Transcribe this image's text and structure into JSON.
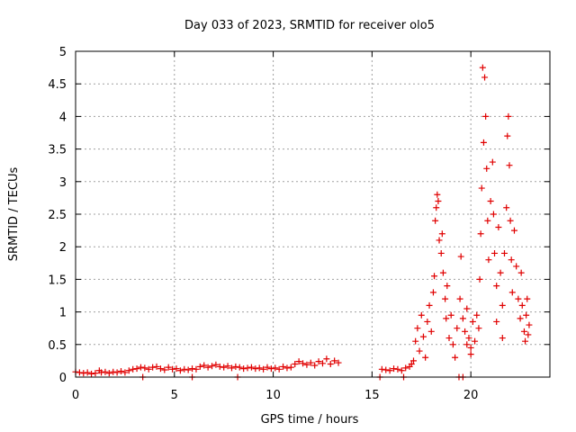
{
  "chart_data": {
    "type": "scatter",
    "title": "Day 033 of 2023, SRMTID for receiver olo5",
    "xlabel": "GPS time / hours",
    "ylabel": "SRMTID / TECUs",
    "xlim": [
      0,
      24
    ],
    "ylim": [
      0,
      5
    ],
    "xticks": [
      0,
      5,
      10,
      15,
      20
    ],
    "xtick_labels": [
      "0",
      "5",
      "10",
      "15",
      "20"
    ],
    "yticks": [
      0,
      0.5,
      1,
      1.5,
      2,
      2.5,
      3,
      3.5,
      4,
      4.5,
      5
    ],
    "ytick_labels": [
      "0",
      "0.5",
      "1",
      "1.5",
      "2",
      "2.5",
      "3",
      "3.5",
      "4",
      "4.5",
      "5"
    ],
    "grid": true,
    "marker": "+",
    "color": "#e00000",
    "series": [
      {
        "name": "olo5",
        "points": [
          [
            0.0,
            0.08
          ],
          [
            0.2,
            0.07
          ],
          [
            0.4,
            0.06
          ],
          [
            0.6,
            0.07
          ],
          [
            0.8,
            0.05
          ],
          [
            1.0,
            0.06
          ],
          [
            1.2,
            0.1
          ],
          [
            1.3,
            0.07
          ],
          [
            1.5,
            0.08
          ],
          [
            1.7,
            0.06
          ],
          [
            1.9,
            0.08
          ],
          [
            2.1,
            0.07
          ],
          [
            2.3,
            0.09
          ],
          [
            2.5,
            0.07
          ],
          [
            2.7,
            0.1
          ],
          [
            2.9,
            0.12
          ],
          [
            3.1,
            0.13
          ],
          [
            3.3,
            0.15
          ],
          [
            3.5,
            0.14
          ],
          [
            3.7,
            0.12
          ],
          [
            3.9,
            0.15
          ],
          [
            4.1,
            0.16
          ],
          [
            4.3,
            0.13
          ],
          [
            4.5,
            0.11
          ],
          [
            4.7,
            0.15
          ],
          [
            4.9,
            0.12
          ],
          [
            5.1,
            0.13
          ],
          [
            5.3,
            0.1
          ],
          [
            5.5,
            0.12
          ],
          [
            5.7,
            0.11
          ],
          [
            5.9,
            0.13
          ],
          [
            6.1,
            0.12
          ],
          [
            6.3,
            0.16
          ],
          [
            6.5,
            0.18
          ],
          [
            6.7,
            0.15
          ],
          [
            6.9,
            0.17
          ],
          [
            7.1,
            0.19
          ],
          [
            7.3,
            0.16
          ],
          [
            7.5,
            0.15
          ],
          [
            7.7,
            0.17
          ],
          [
            7.9,
            0.14
          ],
          [
            8.1,
            0.16
          ],
          [
            8.3,
            0.15
          ],
          [
            8.5,
            0.13
          ],
          [
            8.7,
            0.14
          ],
          [
            8.9,
            0.15
          ],
          [
            9.1,
            0.13
          ],
          [
            9.3,
            0.14
          ],
          [
            9.5,
            0.12
          ],
          [
            9.7,
            0.15
          ],
          [
            9.9,
            0.13
          ],
          [
            10.1,
            0.14
          ],
          [
            10.3,
            0.12
          ],
          [
            10.5,
            0.16
          ],
          [
            10.7,
            0.14
          ],
          [
            10.9,
            0.15
          ],
          [
            11.1,
            0.2
          ],
          [
            11.3,
            0.24
          ],
          [
            11.5,
            0.21
          ],
          [
            11.7,
            0.19
          ],
          [
            11.9,
            0.22
          ],
          [
            12.1,
            0.18
          ],
          [
            12.3,
            0.24
          ],
          [
            12.5,
            0.21
          ],
          [
            12.7,
            0.28
          ],
          [
            12.9,
            0.2
          ],
          [
            13.1,
            0.25
          ],
          [
            13.3,
            0.22
          ],
          [
            3.4,
            0.0
          ],
          [
            5.9,
            0.0
          ],
          [
            8.2,
            0.0
          ],
          [
            15.4,
            0.0
          ],
          [
            16.6,
            0.0
          ],
          [
            19.4,
            0.0
          ],
          [
            19.6,
            0.0
          ],
          [
            15.5,
            0.12
          ],
          [
            15.7,
            0.11
          ],
          [
            15.9,
            0.1
          ],
          [
            16.1,
            0.13
          ],
          [
            16.3,
            0.12
          ],
          [
            16.5,
            0.1
          ],
          [
            16.7,
            0.14
          ],
          [
            16.9,
            0.16
          ],
          [
            17.0,
            0.2
          ],
          [
            17.1,
            0.25
          ],
          [
            17.2,
            0.55
          ],
          [
            17.3,
            0.75
          ],
          [
            17.4,
            0.4
          ],
          [
            17.5,
            0.95
          ],
          [
            17.6,
            0.62
          ],
          [
            17.7,
            0.3
          ],
          [
            17.8,
            0.85
          ],
          [
            17.9,
            1.1
          ],
          [
            18.0,
            0.7
          ],
          [
            18.1,
            1.3
          ],
          [
            18.15,
            1.55
          ],
          [
            18.2,
            2.4
          ],
          [
            18.25,
            2.6
          ],
          [
            18.3,
            2.8
          ],
          [
            18.35,
            2.7
          ],
          [
            18.4,
            2.1
          ],
          [
            18.5,
            1.9
          ],
          [
            18.55,
            2.2
          ],
          [
            18.6,
            1.6
          ],
          [
            18.7,
            1.2
          ],
          [
            18.75,
            0.9
          ],
          [
            18.8,
            1.4
          ],
          [
            18.9,
            0.6
          ],
          [
            19.0,
            0.95
          ],
          [
            19.1,
            0.5
          ],
          [
            19.2,
            0.3
          ],
          [
            19.3,
            0.75
          ],
          [
            19.45,
            1.2
          ],
          [
            19.5,
            1.85
          ],
          [
            19.6,
            0.9
          ],
          [
            19.7,
            0.7
          ],
          [
            19.8,
            1.05
          ],
          [
            19.9,
            0.6
          ],
          [
            20.0,
            0.45
          ],
          [
            20.1,
            0.85
          ],
          [
            20.2,
            0.55
          ],
          [
            20.3,
            0.95
          ],
          [
            20.4,
            0.75
          ],
          [
            20.45,
            1.5
          ],
          [
            20.5,
            2.2
          ],
          [
            20.55,
            2.9
          ],
          [
            20.6,
            4.75
          ],
          [
            20.65,
            3.6
          ],
          [
            20.7,
            4.6
          ],
          [
            20.75,
            4.0
          ],
          [
            20.8,
            3.2
          ],
          [
            20.85,
            2.4
          ],
          [
            20.9,
            1.8
          ],
          [
            21.0,
            2.7
          ],
          [
            21.1,
            3.3
          ],
          [
            21.15,
            2.5
          ],
          [
            21.2,
            1.9
          ],
          [
            21.3,
            1.4
          ],
          [
            21.4,
            2.3
          ],
          [
            21.5,
            1.6
          ],
          [
            21.6,
            1.1
          ],
          [
            21.7,
            1.9
          ],
          [
            21.8,
            2.6
          ],
          [
            21.85,
            3.7
          ],
          [
            21.9,
            4.0
          ],
          [
            21.95,
            3.25
          ],
          [
            22.0,
            2.4
          ],
          [
            22.05,
            1.8
          ],
          [
            22.1,
            1.3
          ],
          [
            22.2,
            2.25
          ],
          [
            22.3,
            1.7
          ],
          [
            22.4,
            1.2
          ],
          [
            22.5,
            0.9
          ],
          [
            22.55,
            1.6
          ],
          [
            22.6,
            1.1
          ],
          [
            22.7,
            0.7
          ],
          [
            22.75,
            0.55
          ],
          [
            22.8,
            0.95
          ],
          [
            22.85,
            1.2
          ],
          [
            22.9,
            0.65
          ],
          [
            22.95,
            0.8
          ],
          [
            21.3,
            0.85
          ],
          [
            21.6,
            0.6
          ],
          [
            20.0,
            0.35
          ],
          [
            19.8,
            0.5
          ]
        ]
      }
    ]
  }
}
